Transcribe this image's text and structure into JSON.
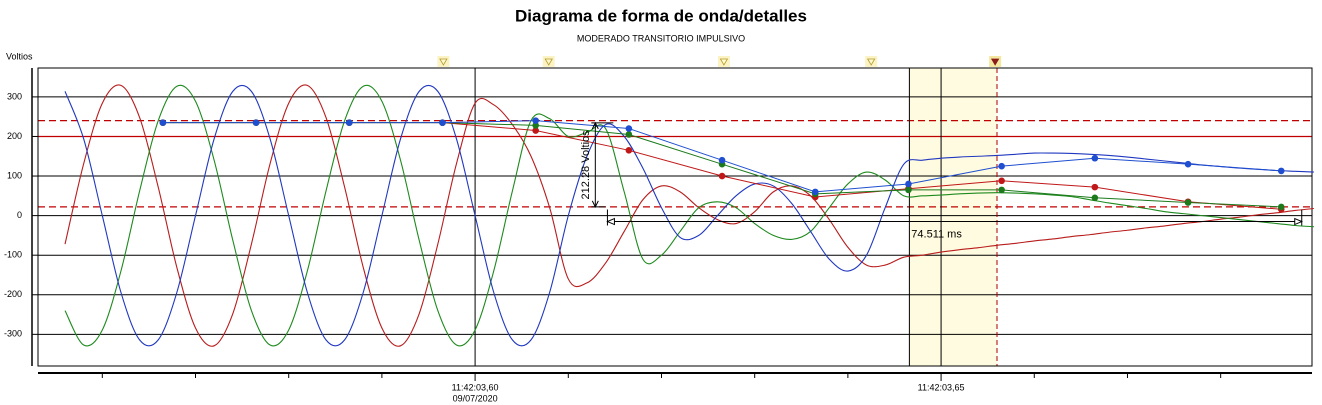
{
  "chart_data": {
    "type": "line",
    "title": "Diagrama de forma de onda/detalles",
    "subtitle": "MODERADO TRANSITORIO IMPULSIVO",
    "y_label": "Voltios",
    "x_date_label": "09/07/2020",
    "xlim": [
      3.5531,
      3.6898
    ],
    "ylim": [
      -380,
      373
    ],
    "yticks": [
      300,
      200,
      100,
      0,
      -100,
      -200,
      -300
    ],
    "xticks": [
      {
        "value": 3.6,
        "label": "11:42:03,60"
      },
      {
        "value": 3.65,
        "label": "11:42:03,65"
      }
    ],
    "xticks_minor": [
      3.56,
      3.57,
      3.58,
      3.59,
      3.61,
      3.62,
      3.63,
      3.64,
      3.66,
      3.67,
      3.68
    ],
    "grid": true,
    "x": [
      3.556,
      3.558,
      3.56,
      3.562,
      3.564,
      3.566,
      3.568,
      3.57,
      3.572,
      3.574,
      3.576,
      3.578,
      3.58,
      3.582,
      3.584,
      3.586,
      3.588,
      3.59,
      3.592,
      3.594,
      3.596,
      3.598,
      3.6,
      3.602,
      3.604,
      3.606,
      3.608,
      3.61,
      3.612,
      3.614,
      3.616,
      3.618,
      3.62,
      3.622,
      3.624,
      3.626,
      3.628,
      3.63,
      3.632,
      3.634,
      3.636,
      3.638,
      3.64,
      3.642,
      3.644,
      3.646,
      3.648,
      3.65,
      3.652,
      3.654,
      3.656,
      3.658,
      3.66,
      3.662,
      3.664,
      3.666,
      3.668,
      3.67,
      3.672,
      3.674,
      3.676,
      3.678,
      3.68,
      3.682,
      3.684,
      3.686,
      3.688,
      3.69
    ],
    "series": [
      {
        "color": "#b81c1c",
        "values": [
          -72,
          131,
          284,
          329,
          248,
          72,
          -131,
          -284,
          -329,
          -248,
          -72,
          131,
          284,
          329,
          248,
          72,
          -131,
          -284,
          -329,
          -248,
          -72,
          131,
          284,
          280,
          230,
          150,
          20,
          -160,
          -170,
          -120,
          -40,
          40,
          75,
          60,
          20,
          -10,
          -20,
          10,
          60,
          75,
          50,
          -10,
          -80,
          -125,
          -125,
          -105,
          -100,
          -92,
          -86,
          -81,
          -75,
          -70,
          -64,
          -59,
          -53,
          -48,
          -42,
          -37,
          -31,
          -26,
          -20,
          -15,
          -9,
          -4,
          2,
          7,
          13,
          18
        ]
      },
      {
        "color": "#1e8a1e",
        "values": [
          -240,
          -327,
          -289,
          -140,
          62,
          240,
          327,
          289,
          140,
          -62,
          -240,
          -327,
          -289,
          -140,
          62,
          240,
          327,
          289,
          140,
          -62,
          -240,
          -327,
          -289,
          -140,
          62,
          240,
          245,
          200,
          210,
          220,
          60,
          -110,
          -100,
          -40,
          20,
          35,
          20,
          -20,
          -50,
          -60,
          -40,
          20,
          80,
          110,
          90,
          50,
          50,
          52,
          55,
          57,
          58,
          57,
          55,
          52,
          48,
          40,
          32,
          25,
          18,
          10,
          5,
          0,
          -5,
          -10,
          -15,
          -20,
          -25,
          -28
        ]
      },
      {
        "color": "#2038c0",
        "values": [
          314,
          194,
          0,
          -194,
          -314,
          -314,
          -194,
          0,
          194,
          314,
          314,
          194,
          0,
          -194,
          -314,
          -314,
          -194,
          0,
          194,
          314,
          314,
          194,
          0,
          -194,
          -314,
          -314,
          -194,
          0,
          150,
          230,
          200,
          120,
          20,
          -55,
          -50,
          0,
          50,
          80,
          75,
          30,
          -40,
          -110,
          -140,
          -100,
          20,
          130,
          140,
          145,
          148,
          150,
          152,
          155,
          158,
          158,
          157,
          155,
          152,
          148,
          143,
          138,
          133,
          128,
          124,
          120,
          117,
          114,
          112,
          110
        ]
      }
    ],
    "trend_x": [
      3.5665,
      3.5765,
      3.5865,
      3.5965,
      3.6065,
      3.6165,
      3.6265,
      3.6365,
      3.6465,
      3.6565,
      3.6665,
      3.6765,
      3.6865
    ],
    "trend_series": [
      {
        "color": "#c01818",
        "values": [
          235,
          235,
          235,
          235,
          215,
          165,
          100,
          47,
          68,
          88,
          72,
          35,
          16
        ]
      },
      {
        "color": "#1c7a1c",
        "values": [
          235,
          235,
          235,
          235,
          228,
          205,
          130,
          55,
          65,
          65,
          45,
          33,
          22
        ]
      },
      {
        "color": "#1f4fd0",
        "values": [
          235,
          235,
          235,
          235,
          240,
          220,
          140,
          60,
          80,
          125,
          145,
          130,
          113
        ]
      }
    ],
    "ref_lines": [
      {
        "value": 240,
        "color": "#c00000",
        "dashed": true
      },
      {
        "value": 200,
        "color": "#c00000",
        "dashed": false
      },
      {
        "value": 22,
        "color": "#c00000",
        "dashed": true
      }
    ],
    "cursors": [
      3.6,
      3.65
    ],
    "highlight": [
      3.6466,
      3.656
    ],
    "event_markers": [
      {
        "x": 3.5966,
        "color": "#f4e48a"
      },
      {
        "x": 3.6079,
        "color": "#f4e48a"
      },
      {
        "x": 3.6267,
        "color": "#f4e48a"
      },
      {
        "x": 3.6425,
        "color": "#f4e48a"
      },
      {
        "x": 3.6558,
        "color": "#8b1a1a"
      }
    ],
    "amplitude_annotation": {
      "label": "212.28 Voltios",
      "x": 3.6129,
      "y_range": [
        234.28,
        22
      ]
    },
    "time_annotation": {
      "label": "74.511 ms",
      "x_range": [
        3.6142,
        3.6887
      ],
      "y": -15
    }
  }
}
